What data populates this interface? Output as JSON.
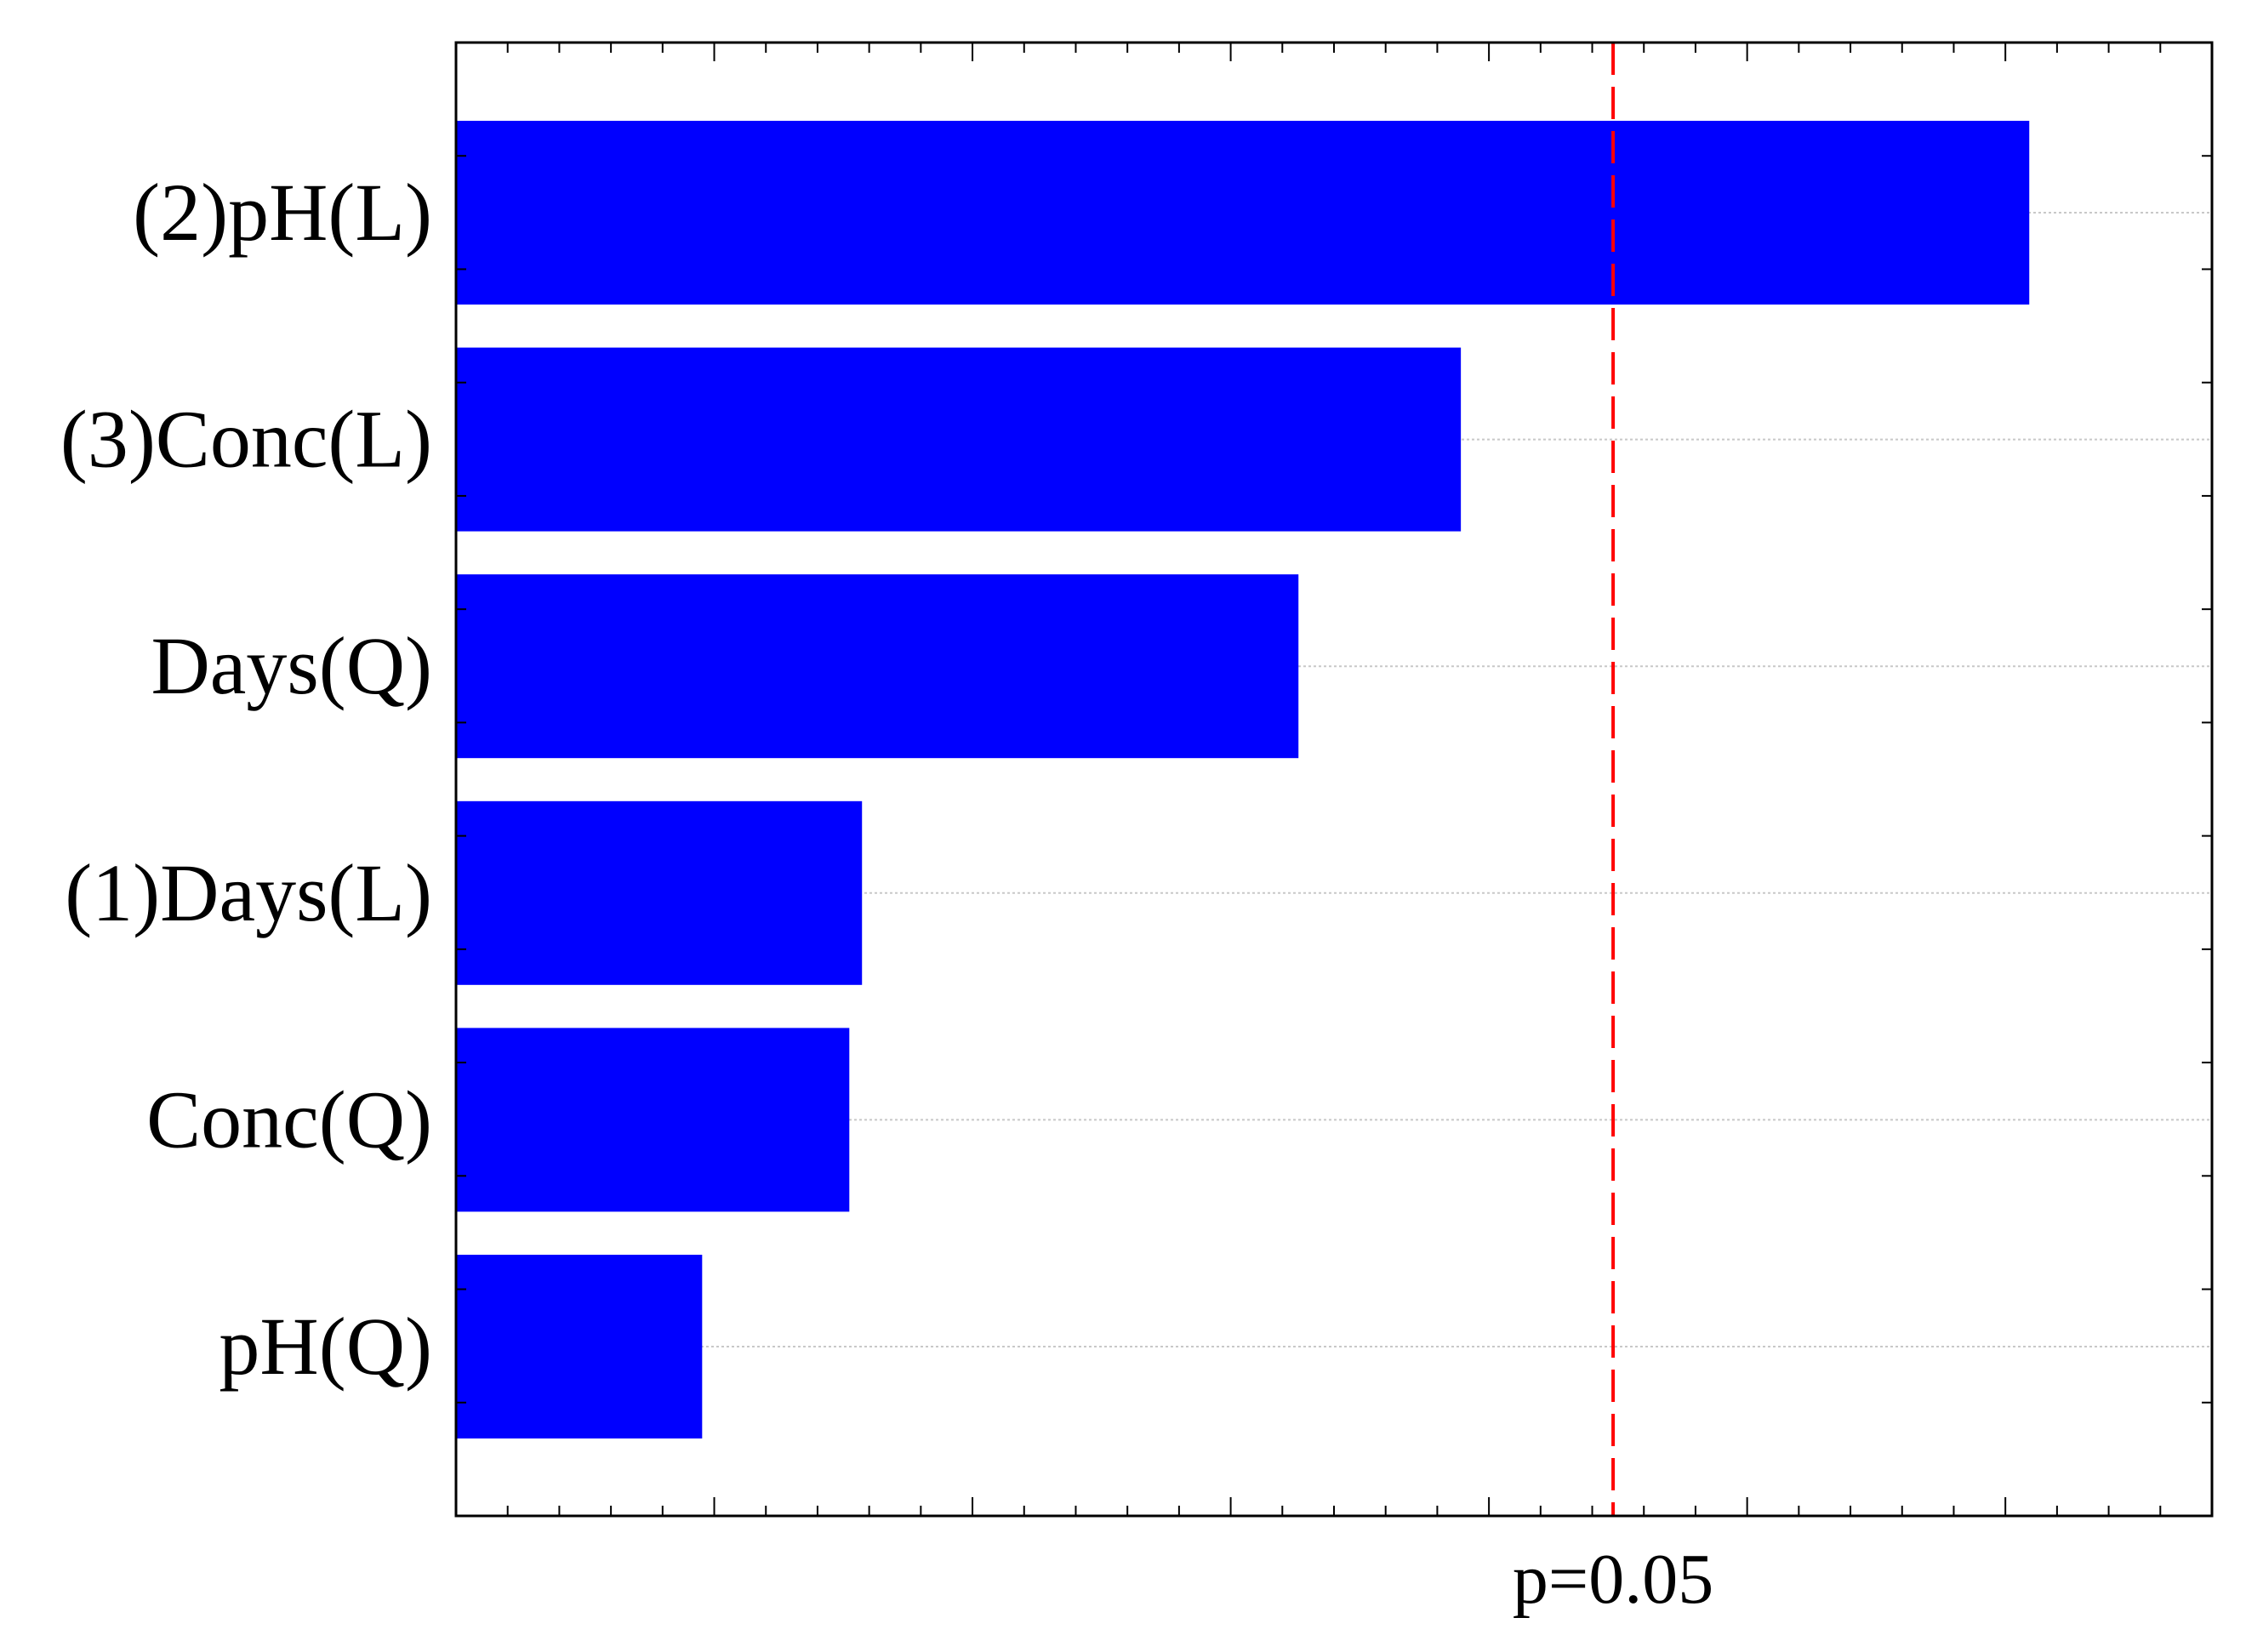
{
  "chart_data": {
    "type": "bar",
    "orientation": "horizontal",
    "categories": [
      "(2)pH(L)",
      "(3)Conc(L)",
      "Days(Q)",
      "(1)Days(L)",
      "Conc(Q)",
      "pH(Q)"
    ],
    "values": [
      3.1,
      1.98,
      1.66,
      0.8,
      0.775,
      0.485
    ],
    "xlim": [
      0,
      3.46
    ],
    "reference_line": {
      "value": 2.28,
      "label": "p=0.05",
      "color": "#ff0000",
      "style": "dashed"
    },
    "colors": {
      "bar": "#0000ff",
      "grid": "#c8c8c8",
      "frame": "#000000"
    },
    "grid": "horizontal dotted at category centers",
    "title": "",
    "xlabel": "",
    "ylabel": ""
  }
}
